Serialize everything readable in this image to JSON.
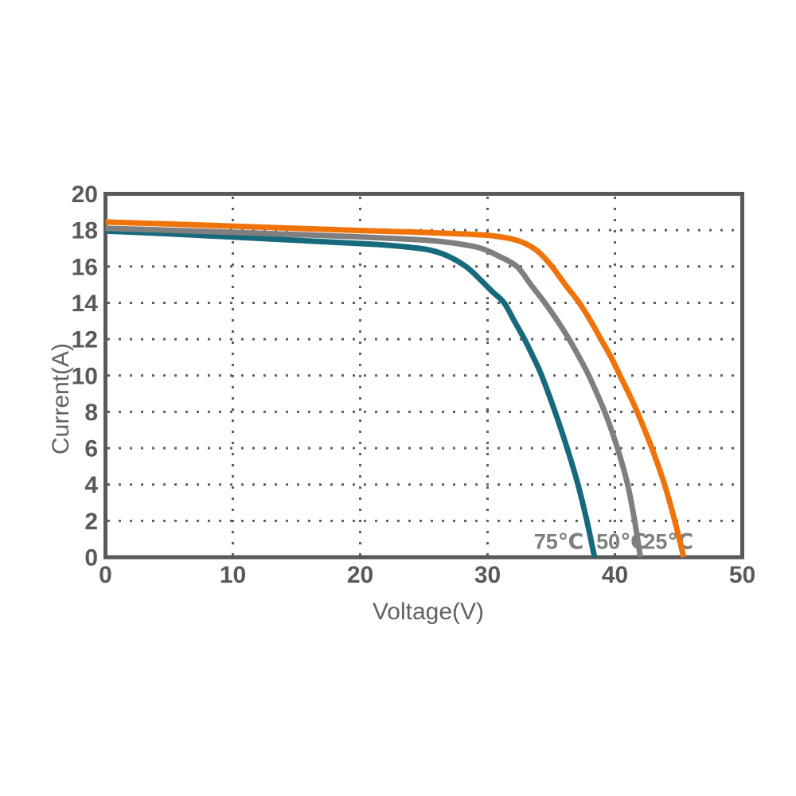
{
  "chart_data": {
    "type": "line",
    "title": "",
    "xlabel": "Voltage(V)",
    "ylabel": "Current(A)",
    "xlim": [
      0,
      50
    ],
    "ylim": [
      0,
      20
    ],
    "xticks": [
      0,
      10,
      20,
      30,
      40,
      50
    ],
    "yticks": [
      0,
      2,
      4,
      6,
      8,
      10,
      12,
      14,
      16,
      18,
      20
    ],
    "grid": {
      "style": "dotted",
      "x_values": [
        10,
        20,
        30,
        40
      ],
      "y_values": [
        2,
        4,
        6,
        8,
        10,
        12,
        14,
        16,
        18
      ]
    },
    "legend_position": "inline-labels-bottom-right",
    "colors": {
      "axis": "#595959",
      "grid": "#5e5e5e",
      "tick_label": "#595959",
      "axis_title": "#616161",
      "curve_label": "#7f7f7f",
      "background": "#ffffff"
    },
    "series": [
      {
        "name": "75℃",
        "color": "#17697d",
        "isc": 17.95,
        "voc": 38.4,
        "label": {
          "text": "75℃",
          "v": 35.6,
          "i": 0.88
        },
        "points": [
          [
            0,
            17.95
          ],
          [
            5,
            17.8
          ],
          [
            10,
            17.62
          ],
          [
            15,
            17.44
          ],
          [
            20,
            17.26
          ],
          [
            22,
            17.18
          ],
          [
            24,
            17.05
          ],
          [
            25.5,
            16.9
          ],
          [
            26.8,
            16.6
          ],
          [
            28.3,
            16.0
          ],
          [
            29.4,
            15.3
          ],
          [
            30.4,
            14.6
          ],
          [
            31.3,
            14.0
          ],
          [
            32.1,
            13.0
          ],
          [
            32.9,
            12.0
          ],
          [
            33.6,
            11.0
          ],
          [
            34.25,
            10.0
          ],
          [
            35.3,
            8.0
          ],
          [
            36.25,
            6.0
          ],
          [
            37.1,
            4.0
          ],
          [
            37.8,
            2.0
          ],
          [
            38.4,
            0
          ]
        ]
      },
      {
        "name": "50℃",
        "color": "#7f7f7f",
        "isc": 18.1,
        "voc": 42.0,
        "label": {
          "text": "50℃",
          "v": 40.5,
          "i": 0.88
        },
        "points": [
          [
            0,
            18.1
          ],
          [
            5,
            18.0
          ],
          [
            10,
            17.88
          ],
          [
            15,
            17.76
          ],
          [
            20,
            17.63
          ],
          [
            24,
            17.5
          ],
          [
            26,
            17.4
          ],
          [
            28,
            17.22
          ],
          [
            29.5,
            17.0
          ],
          [
            30.8,
            16.6
          ],
          [
            32.3,
            16.0
          ],
          [
            33.4,
            15.0
          ],
          [
            34.5,
            14.0
          ],
          [
            35.5,
            13.0
          ],
          [
            36.4,
            12.0
          ],
          [
            37.2,
            11.0
          ],
          [
            37.95,
            10.0
          ],
          [
            39.2,
            8.0
          ],
          [
            40.2,
            6.0
          ],
          [
            41.0,
            4.0
          ],
          [
            41.55,
            2.0
          ],
          [
            42.0,
            0
          ]
        ]
      },
      {
        "name": "25℃",
        "color": "#f0730a",
        "isc": 18.45,
        "voc": 45.4,
        "label": {
          "text": "25℃",
          "v": 44.2,
          "i": 0.88
        },
        "points": [
          [
            0,
            18.45
          ],
          [
            5,
            18.34
          ],
          [
            10,
            18.22
          ],
          [
            15,
            18.1
          ],
          [
            20,
            17.98
          ],
          [
            24,
            17.9
          ],
          [
            27,
            17.82
          ],
          [
            29,
            17.76
          ],
          [
            30.5,
            17.68
          ],
          [
            32,
            17.5
          ],
          [
            33,
            17.25
          ],
          [
            34,
            16.8
          ],
          [
            35,
            16.05
          ],
          [
            36.1,
            15.0
          ],
          [
            37.2,
            14.0
          ],
          [
            38.1,
            13.0
          ],
          [
            38.9,
            12.0
          ],
          [
            39.7,
            11.0
          ],
          [
            40.4,
            10.0
          ],
          [
            41.1,
            9.0
          ],
          [
            41.75,
            8.0
          ],
          [
            42.9,
            6.0
          ],
          [
            43.9,
            4.0
          ],
          [
            44.7,
            2.0
          ],
          [
            45.4,
            0
          ]
        ]
      }
    ]
  }
}
